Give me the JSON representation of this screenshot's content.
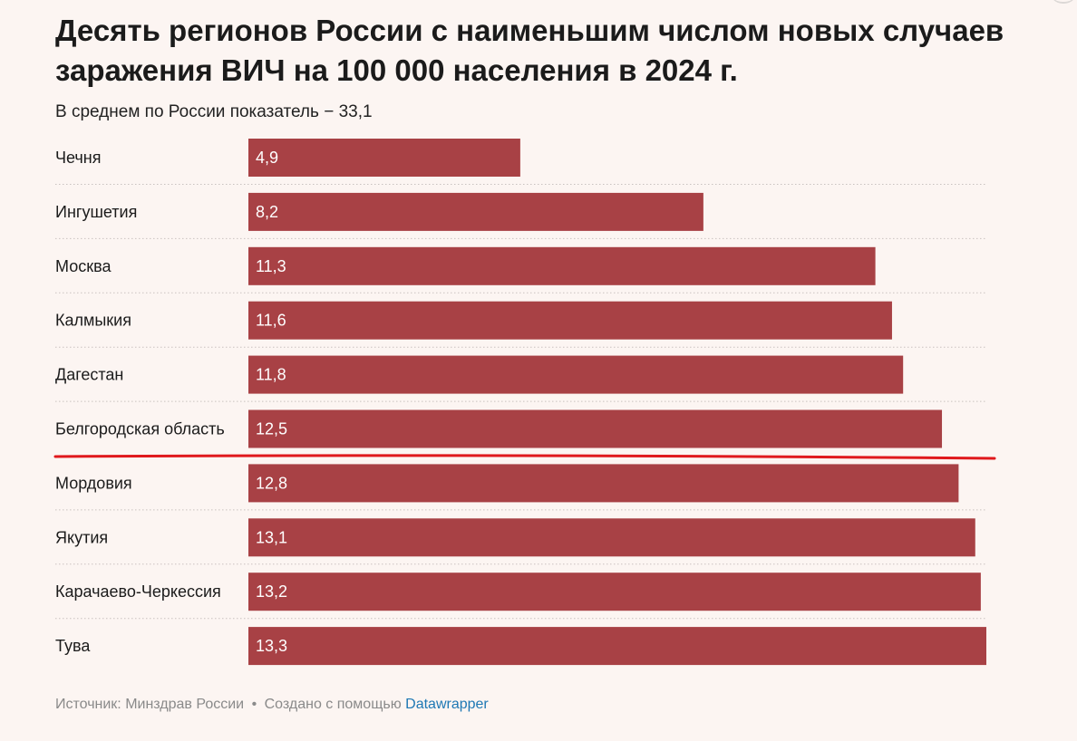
{
  "header": {
    "title": "Десять регионов России с наименьшим числом новых случаев заражения ВИЧ на 100 000 населения в 2024 г.",
    "subtitle": "В среднем по России показатель − 33,1"
  },
  "footer": {
    "source_label": "Источник: Минздрав России",
    "separator": "•",
    "created_with": "Создано с помощью",
    "tool_name": "Datawrapper"
  },
  "colors": {
    "bar": "#a84145",
    "highlight_line": "#e0181c",
    "background": "#fcf5f2",
    "grid": "#c9c2c0",
    "link": "#1e78b4"
  },
  "chart_data": {
    "type": "bar",
    "orientation": "horizontal",
    "title": "Десять регионов России с наименьшим числом новых случаев заражения ВИЧ на 100 000 населения в 2024 г.",
    "subtitle": "В среднем по России показатель − 33,1",
    "categories": [
      "Чечня",
      "Ингушетия",
      "Москва",
      "Калмыкия",
      "Дагестан",
      "Белгородская область",
      "Мордовия",
      "Якутия",
      "Карачаево-Черкессия",
      "Тува"
    ],
    "values": [
      4.9,
      8.2,
      11.3,
      11.6,
      11.8,
      12.5,
      12.8,
      13.1,
      13.2,
      13.3
    ],
    "value_labels": [
      "4,9",
      "8,2",
      "11,3",
      "11,6",
      "11,8",
      "12,5",
      "12,8",
      "13,1",
      "13,2",
      "13,3"
    ],
    "xlim": [
      0,
      13.3
    ],
    "highlight_after_category": "Белгородская область",
    "grid": false
  }
}
